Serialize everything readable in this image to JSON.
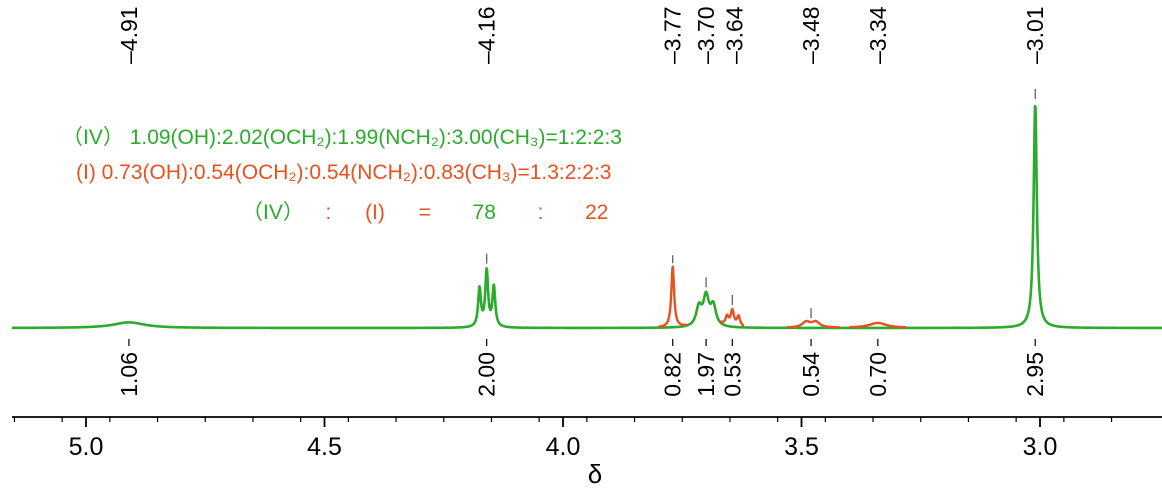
{
  "chart_data": {
    "type": "nmr_spectrum",
    "xlabel": "δ",
    "xlim": [
      5.2,
      2.75
    ],
    "x_ticks": [
      {
        "value": 5.0,
        "label": "5.0"
      },
      {
        "value": 4.5,
        "label": "4.5"
      },
      {
        "value": 4.0,
        "label": "4.0"
      },
      {
        "value": 3.5,
        "label": "3.5"
      },
      {
        "value": 3.0,
        "label": "3.0"
      }
    ],
    "colors": {
      "IV": "#2bab2b",
      "I": "#e8501e",
      "ink": "#000000"
    },
    "peak_labels": [
      {
        "label": "4.91",
        "shift": 4.91
      },
      {
        "label": "4.16",
        "shift": 4.16
      },
      {
        "label": "3.77",
        "shift": 3.77
      },
      {
        "label": "3.70",
        "shift": 3.7
      },
      {
        "label": "3.64",
        "shift": 3.64
      },
      {
        "label": "3.48",
        "shift": 3.48
      },
      {
        "label": "3.34",
        "shift": 3.34
      },
      {
        "label": "3.01",
        "shift": 3.01
      }
    ],
    "integrals": [
      {
        "label": "1.06",
        "shift": 4.91
      },
      {
        "label": "2.00",
        "shift": 4.16
      },
      {
        "label": "0.82",
        "shift": 3.77
      },
      {
        "label": "1.97",
        "shift": 3.7
      },
      {
        "label": "0.53",
        "shift": 3.645
      },
      {
        "label": "0.54",
        "shift": 3.48
      },
      {
        "label": "0.70",
        "shift": 3.34
      },
      {
        "label": "2.95",
        "shift": 3.01
      }
    ],
    "series": [
      {
        "name": "(IV)",
        "peaks": [
          {
            "shift": 4.91,
            "height": 0.025,
            "width": 0.04
          },
          {
            "shift": 4.175,
            "height": 0.17,
            "width": 0.0035
          },
          {
            "shift": 4.16,
            "height": 0.25,
            "width": 0.0035
          },
          {
            "shift": 4.145,
            "height": 0.18,
            "width": 0.0035
          },
          {
            "shift": 3.715,
            "height": 0.085,
            "width": 0.007
          },
          {
            "shift": 3.7,
            "height": 0.13,
            "width": 0.007
          },
          {
            "shift": 3.685,
            "height": 0.09,
            "width": 0.007
          },
          {
            "shift": 3.01,
            "height": 1.0,
            "width": 0.004
          }
        ]
      },
      {
        "name": "(I)",
        "peaks": [
          {
            "shift": 3.77,
            "height": 0.27,
            "width": 0.0035
          },
          {
            "shift": 3.656,
            "height": 0.04,
            "width": 0.004
          },
          {
            "shift": 3.645,
            "height": 0.07,
            "width": 0.004
          },
          {
            "shift": 3.632,
            "height": 0.045,
            "width": 0.004
          },
          {
            "shift": 3.49,
            "height": 0.025,
            "width": 0.01
          },
          {
            "shift": 3.47,
            "height": 0.025,
            "width": 0.01
          },
          {
            "shift": 3.34,
            "height": 0.022,
            "width": 0.022
          }
        ]
      }
    ],
    "annotations": {
      "line1_prefix": "（IV）",
      "line1_text": "1.09(OH):2.02(OCH₂):1.99(NCH₂):3.00(CH₃)=1:2:2:3",
      "line2_prefix": "(I)",
      "line2_text": "0.73(OH):0.54(OCH₂):0.54(NCH₂):0.83(CH₃)=1.3:2:2:3",
      "line3": {
        "a": "（IV）",
        "colon1": ":",
        "b": "(I)",
        "eq": "=",
        "v1": "78",
        "colon2": ":",
        "v2": "22"
      }
    }
  }
}
